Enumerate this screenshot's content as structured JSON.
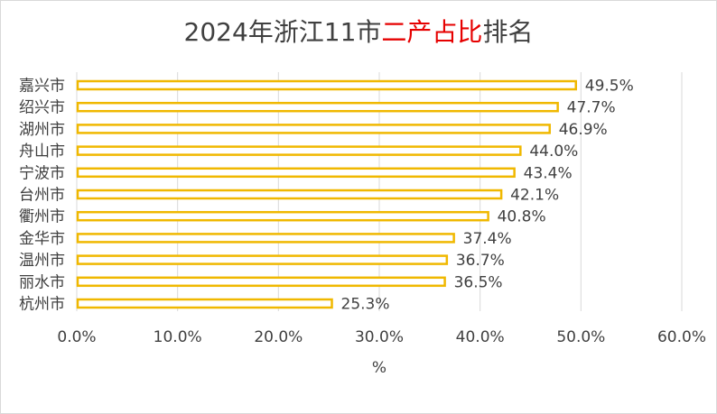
{
  "chart_data": {
    "type": "bar",
    "orientation": "horizontal",
    "title": {
      "prefix": "2024年浙江11市",
      "highlight": "二产占比",
      "suffix": "排名",
      "highlight_color": "#e60000"
    },
    "categories": [
      "嘉兴市",
      "绍兴市",
      "湖州市",
      "舟山市",
      "宁波市",
      "台州市",
      "衢州市",
      "金华市",
      "温州市",
      "丽水市",
      "杭州市"
    ],
    "values": [
      49.5,
      47.7,
      46.9,
      44.0,
      43.4,
      42.1,
      40.8,
      37.4,
      36.7,
      36.5,
      25.3
    ],
    "data_labels": [
      "49.5%",
      "47.7%",
      "46.9%",
      "44.0%",
      "43.4%",
      "42.1%",
      "40.8%",
      "37.4%",
      "36.7%",
      "36.5%",
      "25.3%"
    ],
    "x_ticks": [
      0,
      10,
      20,
      30,
      40,
      50,
      60
    ],
    "x_tick_labels": [
      "0.0%",
      "10.0%",
      "20.0%",
      "30.0%",
      "40.0%",
      "50.0%",
      "60.0%"
    ],
    "xlim": [
      0,
      60
    ],
    "xlabel": "%",
    "ylabel": "",
    "grid": "vertical",
    "bar_stroke_color": "#f0b800",
    "bar_fill_color": "#ffffff",
    "grid_color": "#d9d9d9"
  }
}
